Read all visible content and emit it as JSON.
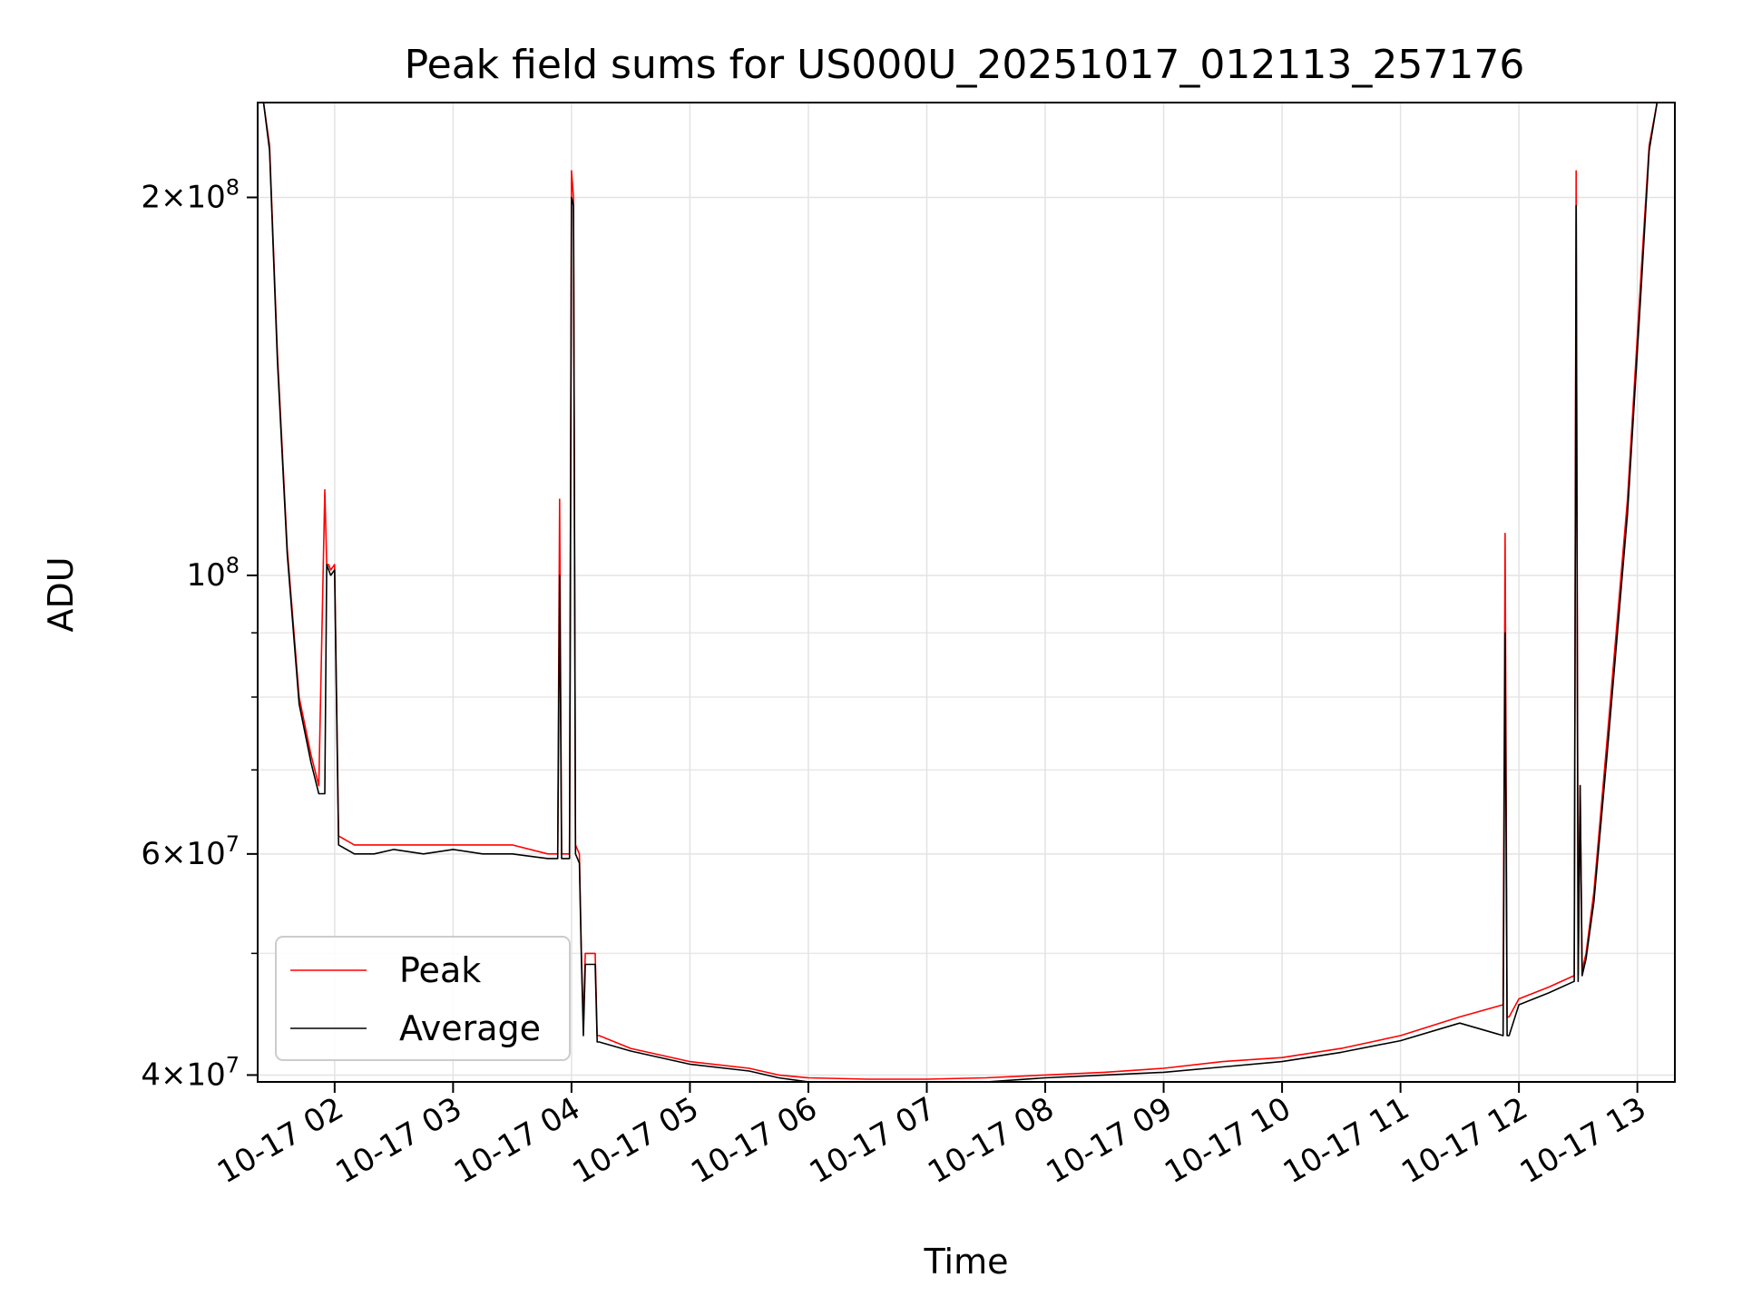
{
  "chart_data": {
    "type": "line",
    "title": "Peak field sums for US000U_20251017_012113_257176",
    "xlabel": "Time",
    "ylabel": "ADU",
    "y_scale": "log",
    "xlim": [
      "2025-10-17 01:21",
      "2025-10-17 13:19"
    ],
    "ylim": [
      39500000,
      238000000
    ],
    "grid": true,
    "legend_position": "lower-left",
    "x_ticks": [
      "10-17 02",
      "10-17 03",
      "10-17 04",
      "10-17 05",
      "10-17 06",
      "10-17 07",
      "10-17 08",
      "10-17 09",
      "10-17 10",
      "10-17 11",
      "10-17 12",
      "10-17 13"
    ],
    "x_tick_hours": [
      2,
      3,
      4,
      5,
      6,
      7,
      8,
      9,
      10,
      11,
      12,
      13
    ],
    "y_ticks": [
      {
        "value": 40000000,
        "mantissa": "4",
        "exponent": "7"
      },
      {
        "value": 60000000,
        "mantissa": "6",
        "exponent": "7"
      },
      {
        "value": 100000000,
        "mantissa": "",
        "exponent": "8"
      },
      {
        "value": 200000000,
        "mantissa": "2",
        "exponent": "8"
      }
    ],
    "series": [
      {
        "name": "Peak",
        "color": "#ff0000",
        "x": [
          "01:22",
          "01:24",
          "01:27",
          "01:31",
          "01:36",
          "01:42",
          "01:48",
          "01:52",
          "01:55",
          "01:56",
          "01:57",
          "01:58",
          "02:00",
          "02:02",
          "02:10",
          "02:20",
          "02:30",
          "02:45",
          "03:00",
          "03:15",
          "03:30",
          "03:48",
          "03:53",
          "03:54",
          "03:55",
          "03:59",
          "04:00",
          "04:01",
          "04:02",
          "04:04",
          "04:05",
          "04:06",
          "04:07",
          "04:08",
          "04:10",
          "04:12",
          "04:13",
          "04:14",
          "04:30",
          "05:00",
          "05:30",
          "05:45",
          "06:00",
          "06:30",
          "07:00",
          "07:30",
          "08:00",
          "08:30",
          "09:00",
          "09:30",
          "10:00",
          "10:30",
          "11:00",
          "11:30",
          "11:52",
          "11:53",
          "11:54",
          "11:55",
          "12:00",
          "12:15",
          "12:28",
          "12:29",
          "12:30",
          "12:31",
          "12:32",
          "12:34",
          "12:38",
          "12:45",
          "12:55",
          "13:02",
          "13:06",
          "13:10",
          "13:19"
        ],
        "y": [
          238000000,
          238000000,
          220000000,
          150000000,
          105000000,
          80000000,
          72000000,
          68000000,
          117000000,
          102000000,
          102000000,
          101000000,
          102000000,
          62000000,
          61000000,
          61000000,
          61000000,
          61000000,
          61000000,
          61000000,
          61000000,
          60000000,
          60000000,
          115000000,
          60000000,
          60000000,
          210000000,
          200000000,
          61000000,
          60000000,
          50000000,
          44000000,
          50000000,
          50000000,
          50000000,
          50000000,
          43000000,
          43000000,
          42000000,
          41000000,
          40500000,
          40000000,
          39800000,
          39700000,
          39700000,
          39800000,
          40000000,
          40200000,
          40500000,
          41000000,
          41300000,
          42000000,
          43000000,
          44500000,
          45500000,
          108000000,
          44500000,
          44500000,
          46000000,
          47000000,
          48000000,
          210000000,
          48000000,
          68000000,
          48500000,
          50000000,
          56000000,
          75000000,
          115000000,
          175000000,
          220000000,
          238000000,
          238000000
        ]
      },
      {
        "name": "Average",
        "color": "#000000",
        "x": [
          "01:22",
          "01:24",
          "01:27",
          "01:31",
          "01:36",
          "01:42",
          "01:48",
          "01:52",
          "01:55",
          "01:56",
          "01:57",
          "01:58",
          "02:00",
          "02:02",
          "02:10",
          "02:20",
          "02:30",
          "02:45",
          "03:00",
          "03:15",
          "03:30",
          "03:48",
          "03:53",
          "03:54",
          "03:55",
          "03:59",
          "04:00",
          "04:01",
          "04:02",
          "04:04",
          "04:05",
          "04:06",
          "04:07",
          "04:08",
          "04:10",
          "04:12",
          "04:13",
          "04:14",
          "04:30",
          "05:00",
          "05:30",
          "05:45",
          "06:00",
          "06:30",
          "07:00",
          "07:30",
          "08:00",
          "08:30",
          "09:00",
          "09:30",
          "10:00",
          "10:30",
          "11:00",
          "11:30",
          "11:52",
          "11:53",
          "11:54",
          "11:55",
          "12:00",
          "12:15",
          "12:28",
          "12:29",
          "12:30",
          "12:31",
          "12:32",
          "12:34",
          "12:38",
          "12:45",
          "12:55",
          "13:02",
          "13:06",
          "13:10",
          "13:19"
        ],
        "y": [
          238000000,
          238000000,
          218000000,
          148000000,
          104000000,
          79000000,
          71000000,
          67000000,
          67000000,
          102000000,
          101000000,
          100000000,
          101000000,
          61000000,
          60000000,
          60000000,
          60500000,
          60000000,
          60500000,
          60000000,
          60000000,
          59500000,
          59500000,
          100000000,
          59500000,
          59500000,
          200000000,
          197000000,
          60000000,
          59000000,
          49500000,
          43000000,
          49000000,
          49000000,
          49000000,
          49000000,
          42500000,
          42500000,
          41800000,
          40800000,
          40300000,
          39800000,
          39500000,
          39400000,
          39400000,
          39500000,
          39800000,
          40000000,
          40200000,
          40600000,
          41000000,
          41700000,
          42600000,
          44000000,
          43000000,
          90000000,
          43000000,
          43000000,
          45500000,
          46500000,
          47500000,
          197000000,
          47500000,
          68000000,
          48000000,
          49500000,
          55000000,
          73000000,
          112000000,
          170000000,
          218000000,
          238000000,
          238000000
        ]
      }
    ]
  }
}
